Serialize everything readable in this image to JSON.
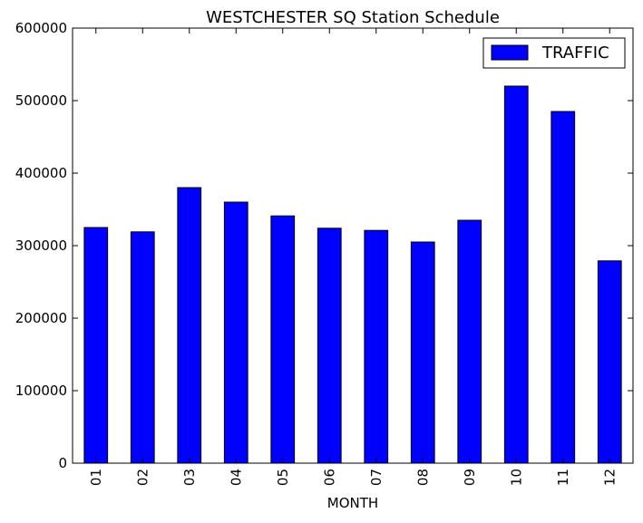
{
  "chart_data": {
    "type": "bar",
    "title": "WESTCHESTER SQ Station Schedule",
    "xlabel": "MONTH",
    "ylabel": "",
    "categories": [
      "01",
      "02",
      "03",
      "04",
      "05",
      "06",
      "07",
      "08",
      "09",
      "10",
      "11",
      "12"
    ],
    "series": [
      {
        "name": "TRAFFIC",
        "color": "#0000ff",
        "values": [
          325000,
          319000,
          380000,
          360000,
          341000,
          324000,
          321000,
          305000,
          335000,
          520000,
          485000,
          279000
        ]
      }
    ],
    "ylim": [
      0,
      600000
    ],
    "yticks": [
      0,
      100000,
      200000,
      300000,
      400000,
      500000,
      600000
    ],
    "grid": false,
    "legend": "top-right"
  }
}
